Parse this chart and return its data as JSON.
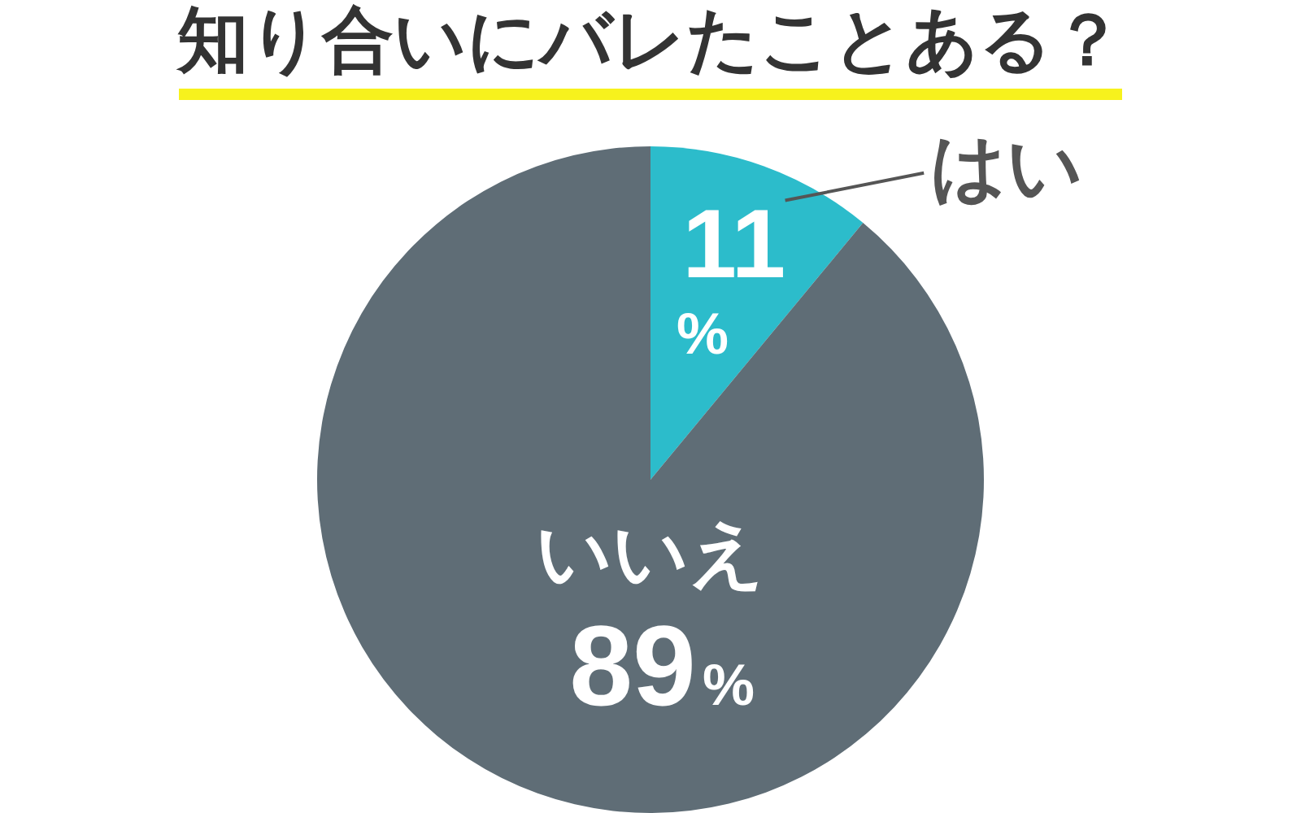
{
  "chart_data": {
    "type": "pie",
    "title": "知り合いにバレたことある？",
    "categories": [
      "はい",
      "いいえ"
    ],
    "values": [
      11,
      89
    ],
    "colors": [
      "#2cbccb",
      "#5f6d76"
    ],
    "value_labels": [
      "11%",
      "89%"
    ]
  }
}
